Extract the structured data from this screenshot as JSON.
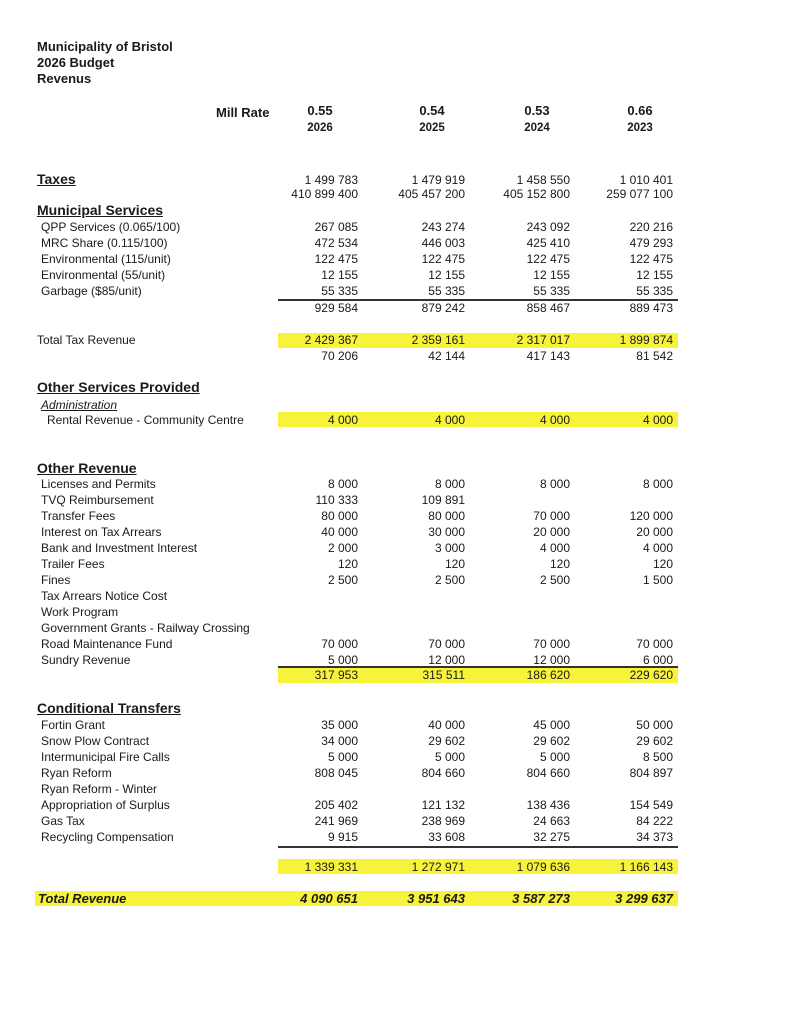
{
  "header": {
    "municipality": "Municipality of Bristol",
    "budget": "2026 Budget",
    "section": "Revenus"
  },
  "mill_rate_label": "Mill Rate",
  "columns": [
    {
      "mill_rate": "0.55",
      "year": "2026"
    },
    {
      "mill_rate": "0.54",
      "year": "2025"
    },
    {
      "mill_rate": "0.53",
      "year": "2024"
    },
    {
      "mill_rate": "0.66",
      "year": "2023"
    }
  ],
  "taxes": {
    "label": "Taxes",
    "values": [
      "1 499 783",
      "1 479 919",
      "1 458 550",
      "1 010 401"
    ],
    "assessment": [
      "410 899 400",
      "405 457 200",
      "405 152 800",
      "259 077 100"
    ]
  },
  "municipal_services": {
    "label": "Municipal Services",
    "items": [
      {
        "label": "QPP Services (0.065/100)",
        "values": [
          "267 085",
          "243 274",
          "243 092",
          "220 216"
        ]
      },
      {
        "label": "MRC Share (0.115/100)",
        "values": [
          "472 534",
          "446 003",
          "425 410",
          "479 293"
        ]
      },
      {
        "label": "Environmental (115/unit)",
        "values": [
          "122 475",
          "122 475",
          "122 475",
          "122 475"
        ]
      },
      {
        "label": "Environmental (55/unit)",
        "values": [
          "12 155",
          "12 155",
          "12 155",
          "12 155"
        ]
      },
      {
        "label": "Garbage ($85/unit)",
        "values": [
          "55 335",
          "55 335",
          "55 335",
          "55 335"
        ]
      }
    ],
    "subtotal": [
      "929 584",
      "879 242",
      "858 467",
      "889 473"
    ]
  },
  "total_tax_revenue": {
    "label": "Total Tax Revenue",
    "values": [
      "2 429 367",
      "2 359 161",
      "2 317 017",
      "1 899 874"
    ],
    "difference": [
      "70 206",
      "42 144",
      "417 143",
      "81 542"
    ]
  },
  "other_services": {
    "label": "Other Services Provided",
    "sublabel": "Administration",
    "items": [
      {
        "label": "Rental Revenue - Community Centre",
        "values": [
          "4 000",
          "4 000",
          "4 000",
          "4 000"
        ]
      }
    ]
  },
  "other_revenue": {
    "label": "Other Revenue",
    "items": [
      {
        "label": "Licenses and Permits",
        "values": [
          "8 000",
          "8 000",
          "8 000",
          "8 000"
        ]
      },
      {
        "label": "TVQ Reimbursement",
        "values": [
          "110 333",
          "109 891",
          "",
          ""
        ]
      },
      {
        "label": "Transfer Fees",
        "values": [
          "80 000",
          "80 000",
          "70 000",
          "120 000"
        ]
      },
      {
        "label": "Interest on Tax Arrears",
        "values": [
          "40 000",
          "30 000",
          "20 000",
          "20 000"
        ]
      },
      {
        "label": "Bank and Investment Interest",
        "values": [
          "2 000",
          "3 000",
          "4 000",
          "4 000"
        ]
      },
      {
        "label": "Trailer Fees",
        "values": [
          "120",
          "120",
          "120",
          "120"
        ]
      },
      {
        "label": "Fines",
        "values": [
          "2 500",
          "2 500",
          "2 500",
          "1 500"
        ]
      },
      {
        "label": "Tax Arrears Notice Cost",
        "values": [
          "",
          "",
          "",
          ""
        ]
      },
      {
        "label": "Work Program",
        "values": [
          "",
          "",
          "",
          ""
        ]
      },
      {
        "label": "Government Grants - Railway Crossing",
        "values": [
          "",
          "",
          "",
          ""
        ]
      },
      {
        "label": "Road Maintenance Fund",
        "values": [
          "70 000",
          "70 000",
          "70 000",
          "70 000"
        ]
      },
      {
        "label": "Sundry Revenue",
        "values": [
          "5 000",
          "12 000",
          "12 000",
          "6 000"
        ]
      }
    ],
    "subtotal": [
      "317 953",
      "315 511",
      "186 620",
      "229 620"
    ]
  },
  "conditional_transfers": {
    "label": "Conditional Transfers",
    "items": [
      {
        "label": "Fortin Grant",
        "values": [
          "35 000",
          "40 000",
          "45 000",
          "50 000"
        ]
      },
      {
        "label": "Snow Plow Contract",
        "values": [
          "34 000",
          "29 602",
          "29 602",
          "29 602"
        ]
      },
      {
        "label": "Intermunicipal Fire Calls",
        "values": [
          "5 000",
          "5 000",
          "5 000",
          "8 500"
        ]
      },
      {
        "label": "Ryan Reform",
        "values": [
          "808 045",
          "804 660",
          "804 660",
          "804 897"
        ]
      },
      {
        "label": "Ryan Reform - Winter",
        "values": [
          "",
          "",
          "",
          ""
        ]
      },
      {
        "label": "Appropriation of Surplus",
        "values": [
          "205 402",
          "121 132",
          "138 436",
          "154 549"
        ]
      },
      {
        "label": "Gas Tax",
        "values": [
          "241 969",
          "238 969",
          "24 663",
          "84 222"
        ]
      },
      {
        "label": "Recycling Compensation",
        "values": [
          "9 915",
          "33 608",
          "32 275",
          "34 373"
        ]
      }
    ],
    "subtotal": [
      "1 339 331",
      "1 272 971",
      "1 079 636",
      "1 166 143"
    ]
  },
  "total_revenue": {
    "label": "Total Revenue",
    "values": [
      "4 090 651",
      "3 951 643",
      "3 587 273",
      "3 299 637"
    ]
  },
  "colors": {
    "highlight": "#f7f23a",
    "text": "#1a1a1a"
  }
}
